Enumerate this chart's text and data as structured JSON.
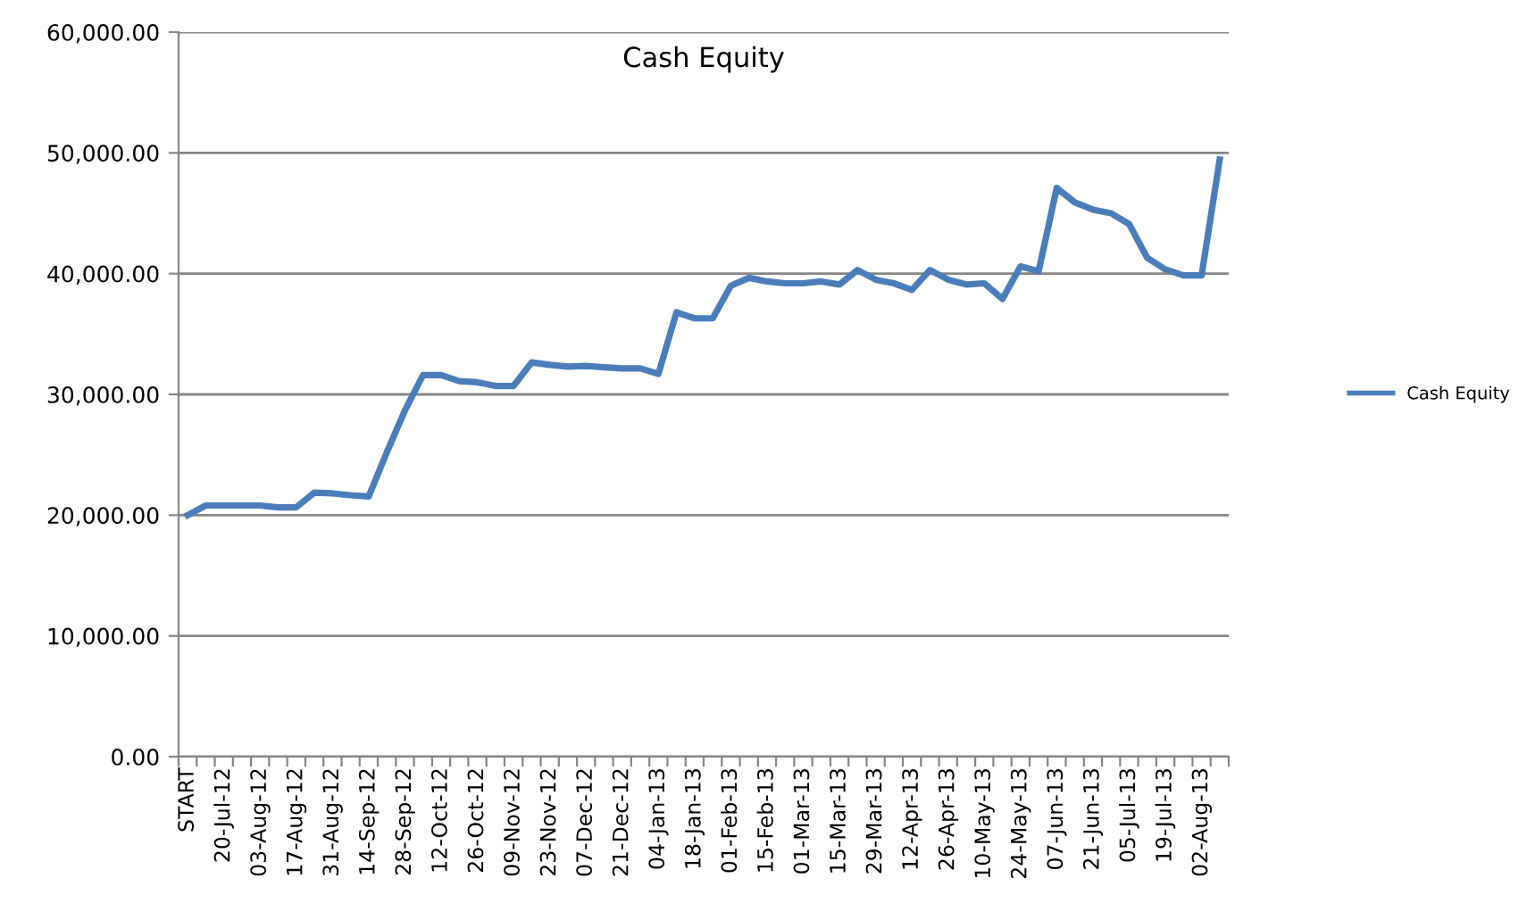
{
  "chart_data": {
    "type": "line",
    "title": "Cash Equity",
    "categories": [
      "START",
      null,
      "20-Jul-12",
      null,
      "03-Aug-12",
      null,
      "17-Aug-12",
      null,
      "31-Aug-12",
      null,
      "14-Sep-12",
      null,
      "28-Sep-12",
      null,
      "12-Oct-12",
      null,
      "26-Oct-12",
      null,
      "09-Nov-12",
      null,
      "23-Nov-12",
      null,
      "07-Dec-12",
      null,
      "21-Dec-12",
      null,
      "04-Jan-13",
      null,
      "18-Jan-13",
      null,
      "01-Feb-13",
      null,
      "15-Feb-13",
      null,
      "01-Mar-13",
      null,
      "15-Mar-13",
      null,
      "29-Mar-13",
      null,
      "12-Apr-13",
      null,
      "26-Apr-13",
      null,
      "10-May-13",
      null,
      "24-May-13",
      null,
      "07-Jun-13",
      null,
      "21-Jun-13",
      null,
      "05-Jul-13",
      null,
      "19-Jul-13",
      null,
      "02-Aug-13",
      null
    ],
    "series": [
      {
        "name": "Cash Equity",
        "color": "#4a7ebb",
        "values": [
          20000,
          20800,
          20800,
          20800,
          20800,
          20650,
          20650,
          21870,
          21800,
          21650,
          21550,
          25200,
          28670,
          31600,
          31600,
          31100,
          31000,
          30700,
          30700,
          32650,
          32450,
          32300,
          32350,
          32250,
          32150,
          32150,
          31700,
          36800,
          36300,
          36300,
          39000,
          39650,
          39350,
          39200,
          39200,
          39350,
          39100,
          40300,
          39500,
          39200,
          38650,
          40300,
          39500,
          39100,
          39200,
          37900,
          40600,
          40200,
          47100,
          45900,
          45300,
          45000,
          44100,
          41300,
          40350,
          39850,
          39850,
          49450
        ]
      }
    ],
    "ylim": [
      0,
      60000
    ],
    "yticks": [
      {
        "value": 0,
        "label": "0.00"
      },
      {
        "value": 10000,
        "label": "10,000.00"
      },
      {
        "value": 20000,
        "label": "20,000.00"
      },
      {
        "value": 30000,
        "label": "30,000.00"
      },
      {
        "value": 40000,
        "label": "40,000.00"
      },
      {
        "value": 50000,
        "label": "50,000.00"
      },
      {
        "value": 60000,
        "label": "60,000.00"
      }
    ],
    "grid": "y",
    "legend": "right",
    "marker": "none",
    "line_style": "solid"
  }
}
